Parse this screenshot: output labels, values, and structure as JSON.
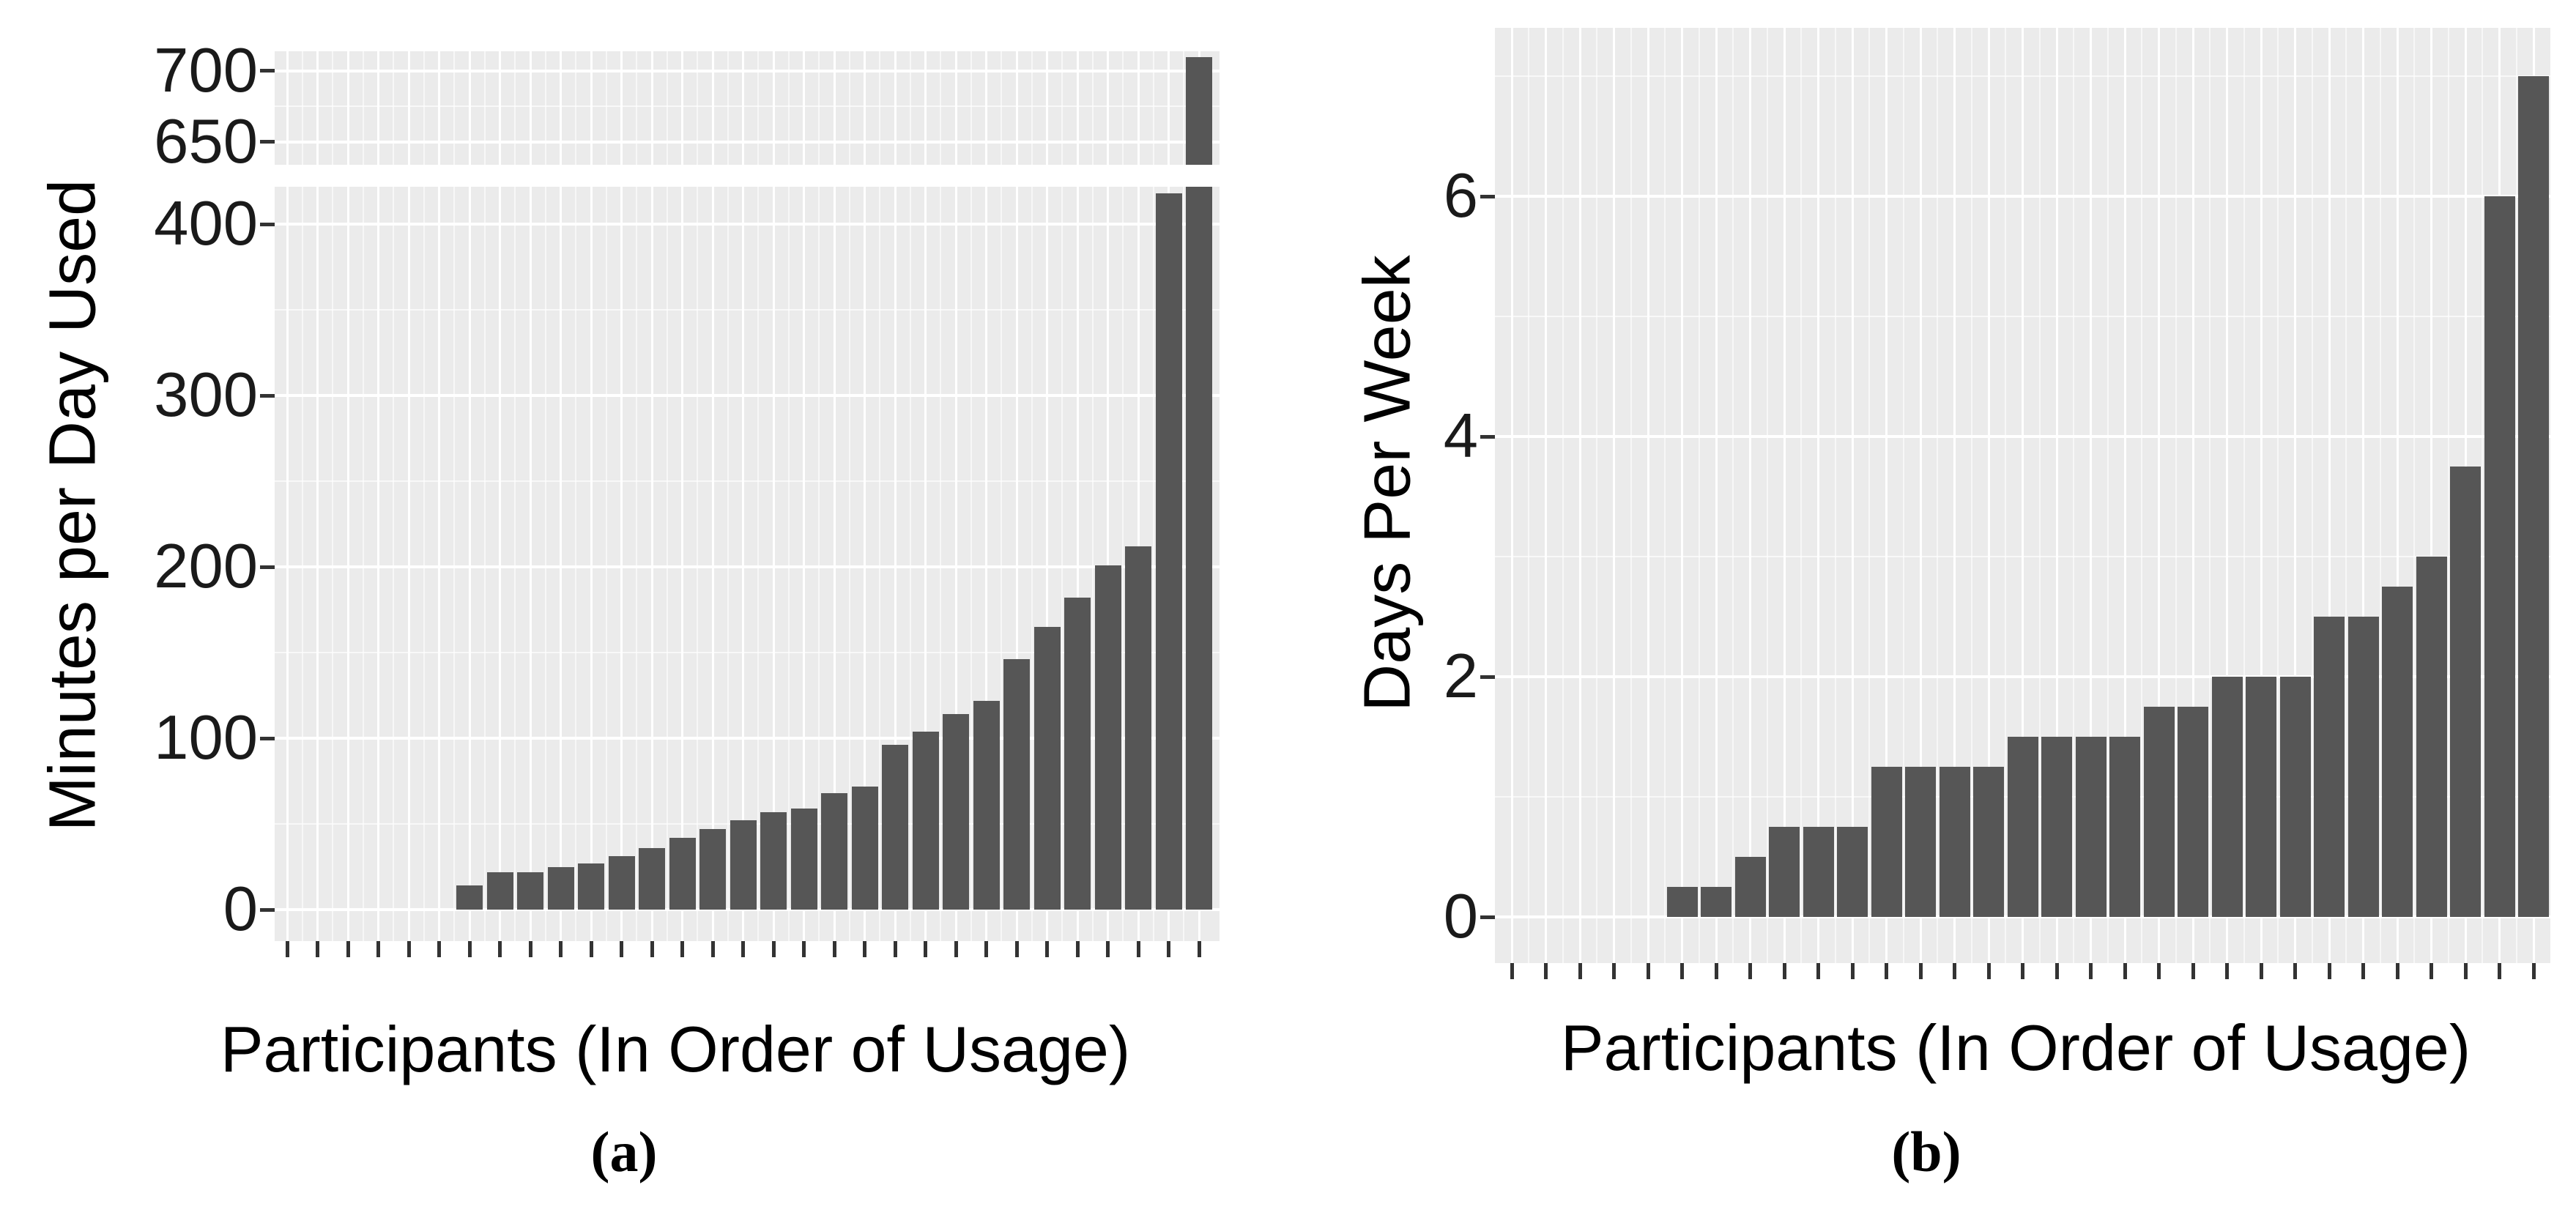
{
  "figure": {
    "caption_a": "(a)",
    "caption_b": "(b)",
    "colors": {
      "bar": "#565656",
      "panel_background": "#ebebeb",
      "grid_major": "#ffffff",
      "axis_text": "#1a1a1a",
      "tick_mark": "#333333"
    }
  },
  "chart_data": [
    {
      "id": "a",
      "type": "bar",
      "title": "",
      "xlabel": "Participants (In Order of Usage)",
      "ylabel": "Minutes per Day Used",
      "caption": "(a)",
      "broken_y_axis": true,
      "upper_segment_ticks": [
        "650",
        "700"
      ],
      "upper_segment_tick_values": [
        650,
        700
      ],
      "upper_segment_minor_values": [
        675
      ],
      "upper_segment_range": [
        634,
        714
      ],
      "main_segment_ticks": [
        "0",
        "100",
        "200",
        "300",
        "400"
      ],
      "main_segment_tick_values": [
        0,
        100,
        200,
        300,
        400
      ],
      "main_segment_minor_values": [
        50,
        150,
        250,
        350
      ],
      "main_segment_range": [
        0,
        422
      ],
      "grid": true,
      "legend": "none",
      "n_participants": 31,
      "categories_note": "31 unlabeled participant positions, sorted ascending by usage; first 6 have zero usage",
      "values": [
        0,
        0,
        0,
        0,
        0,
        0,
        14,
        22,
        22,
        25,
        27,
        31,
        36,
        42,
        47,
        52,
        57,
        59,
        68,
        72,
        96,
        104,
        114,
        122,
        146,
        165,
        182,
        201,
        212,
        418,
        710
      ]
    },
    {
      "id": "b",
      "type": "bar",
      "title": "",
      "xlabel": "Participants (In Order of Usage)",
      "ylabel": "Days Per Week",
      "caption": "(b)",
      "broken_y_axis": false,
      "y_ticks": [
        "0",
        "2",
        "4",
        "6"
      ],
      "y_tick_values": [
        0,
        2,
        4,
        6
      ],
      "y_minor_values": [
        1,
        3,
        5,
        7
      ],
      "ylim": [
        0,
        7.4
      ],
      "grid": true,
      "legend": "none",
      "n_participants": 31,
      "categories_note": "31 unlabeled participant positions, sorted ascending by usage; first 5 have zero usage",
      "values": [
        0,
        0,
        0,
        0,
        0,
        0.25,
        0.25,
        0.5,
        0.75,
        0.75,
        0.75,
        1.25,
        1.25,
        1.25,
        1.25,
        1.5,
        1.5,
        1.5,
        1.5,
        1.75,
        1.75,
        2,
        2,
        2,
        2.5,
        2.5,
        2.75,
        3,
        3.75,
        6,
        7
      ]
    }
  ]
}
